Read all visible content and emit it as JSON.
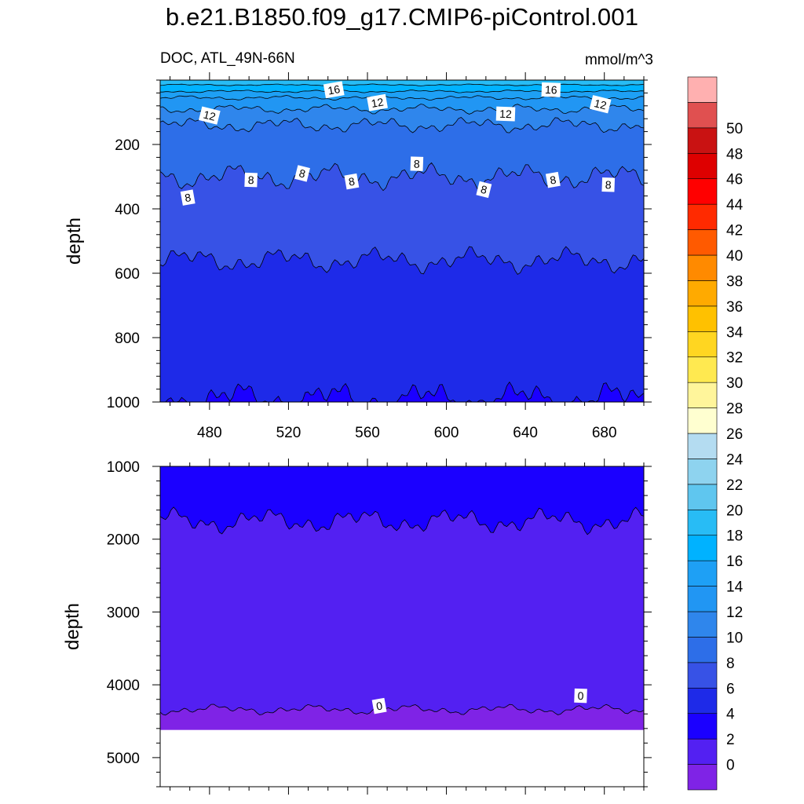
{
  "chart_data": {
    "type": "heatmap",
    "title": "b.e21.B1850.f09_g17.CMIP6-piControl.001",
    "left_string": "DOC, ATL_49N-66N",
    "right_string": "mmol/m^3",
    "ylabel": "depth",
    "xlabel": "",
    "x_range": [
      455,
      700
    ],
    "x_ticks": [
      480,
      520,
      560,
      600,
      640,
      680
    ],
    "y_reversed": true,
    "panels": [
      {
        "name": "upper",
        "ylim": [
          0,
          1000
        ],
        "y_ticks": [
          200,
          400,
          600,
          800,
          1000
        ],
        "show_x_tick_labels": true,
        "fill_max_depth": 1000,
        "contour_levels": [
          {
            "level": 18,
            "depth": 15,
            "amp": 3
          },
          {
            "level": 16,
            "depth": 35,
            "amp": 5
          },
          {
            "level": 14,
            "depth": 55,
            "amp": 8
          },
          {
            "level": 12,
            "depth": 90,
            "amp": 16
          },
          {
            "level": 10,
            "depth": 140,
            "amp": 28
          },
          {
            "level": 8,
            "depth": 300,
            "amp": 45
          },
          {
            "level": 6,
            "depth": 560,
            "amp": 45
          },
          {
            "level": 4,
            "depth": 990,
            "amp": 60
          }
        ],
        "contour_labels": [
          {
            "text": "16",
            "x": 543,
            "depth": 30
          },
          {
            "text": "16",
            "x": 653,
            "depth": 30
          },
          {
            "text": "12",
            "x": 480,
            "depth": 110
          },
          {
            "text": "12",
            "x": 565,
            "depth": 70
          },
          {
            "text": "12",
            "x": 630,
            "depth": 105
          },
          {
            "text": "12",
            "x": 678,
            "depth": 75
          },
          {
            "text": "8",
            "x": 469,
            "depth": 365
          },
          {
            "text": "8",
            "x": 501,
            "depth": 310
          },
          {
            "text": "8",
            "x": 527,
            "depth": 290
          },
          {
            "text": "8",
            "x": 552,
            "depth": 315
          },
          {
            "text": "8",
            "x": 585,
            "depth": 260
          },
          {
            "text": "8",
            "x": 619,
            "depth": 340
          },
          {
            "text": "8",
            "x": 654,
            "depth": 310
          },
          {
            "text": "8",
            "x": 682,
            "depth": 325
          }
        ]
      },
      {
        "name": "lower",
        "ylim": [
          1000,
          5400
        ],
        "y_ticks": [
          1000,
          2000,
          3000,
          4000,
          5000
        ],
        "show_x_tick_labels": false,
        "fill_max_depth": 4620,
        "contour_levels": [
          {
            "level": 2,
            "depth": 1750,
            "amp": 200
          },
          {
            "level": 0,
            "depth": 4340,
            "amp": 80
          }
        ],
        "contour_labels": [
          {
            "text": "0",
            "x": 566,
            "depth": 4290
          },
          {
            "text": "0",
            "x": 668,
            "depth": 4150
          }
        ]
      }
    ],
    "colorbar": {
      "levels": [
        0,
        2,
        4,
        6,
        8,
        10,
        12,
        14,
        16,
        18,
        20,
        22,
        24,
        26,
        28,
        30,
        32,
        34,
        36,
        38,
        40,
        42,
        44,
        46,
        48,
        50
      ],
      "colors": [
        "#7f23e6",
        "#5320f2",
        "#1b00ff",
        "#1e2ae8",
        "#3752e6",
        "#2d6ee8",
        "#2f86ec",
        "#2196f3",
        "#1ea0f5",
        "#00b2ff",
        "#28bcf5",
        "#5fc6ef",
        "#8ed3ef",
        "#b4dcf1",
        "#ffffd0",
        "#fff59b",
        "#ffe950",
        "#ffd621",
        "#ffc100",
        "#ffaa00",
        "#ff8a00",
        "#ff5a00",
        "#ff2a00",
        "#ff0000",
        "#de0000",
        "#c91212",
        "#e05050",
        "#ffb0b0"
      ]
    }
  }
}
